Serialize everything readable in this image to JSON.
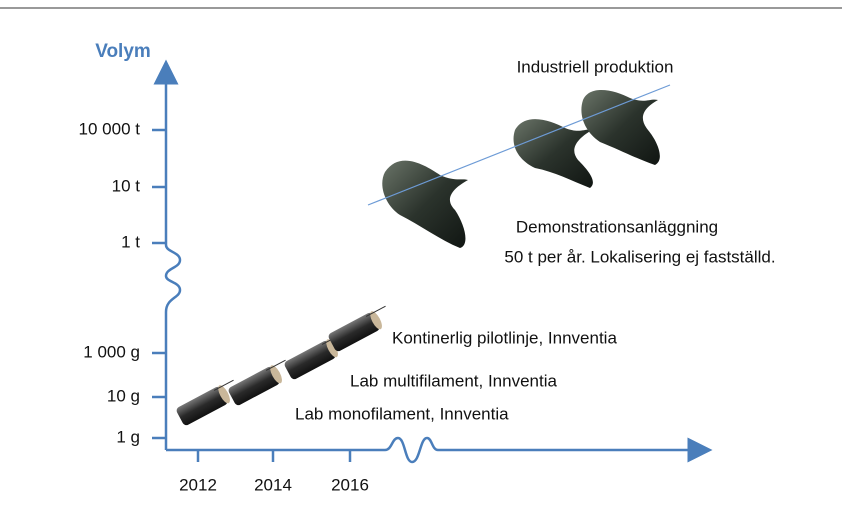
{
  "axis": {
    "title": "Volym",
    "y_labels": [
      "10 000 t",
      "10 t",
      "1 t",
      "1 000 g",
      "10 g",
      "1 g"
    ],
    "x_labels": [
      "2012",
      "2014",
      "2016"
    ]
  },
  "annotations": {
    "industrial": "Industriell produktion",
    "demo_title": "Demonstrationsanläggning",
    "demo_detail": "50 t per år. Lokalisering ej fastställd.",
    "pilot": "Kontinerlig pilotlinje, Innventia",
    "multi": "Lab multifilament, Innventia",
    "mono": "Lab monofilament, Innventia"
  }
}
